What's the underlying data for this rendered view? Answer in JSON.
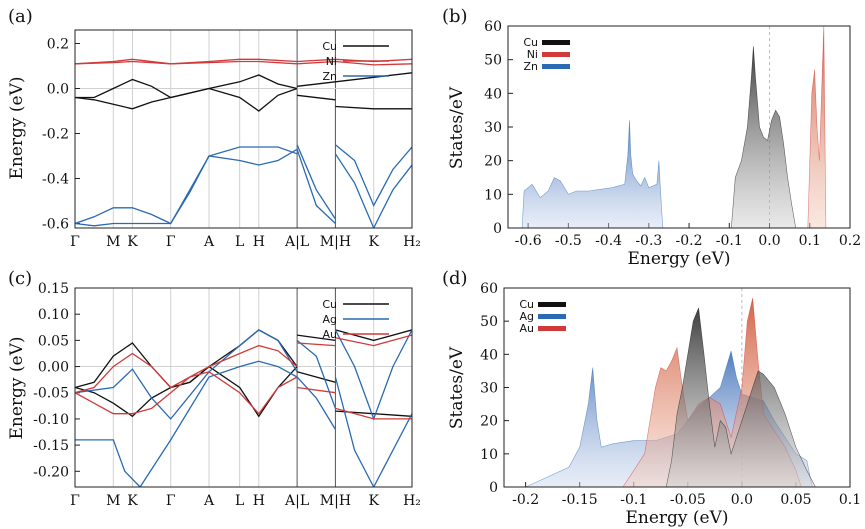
{
  "chart_data": [
    {
      "panel": "(a)",
      "type": "line",
      "xlabel": "",
      "ylabel": "Energy (eV)",
      "ylim": [
        -0.62,
        0.26
      ],
      "yticks": [
        "0.2",
        "0.0",
        "-0.2",
        "-0.4",
        "-0.6"
      ],
      "ytick_values": [
        0.2,
        0.0,
        -0.2,
        -0.4,
        -0.6
      ],
      "kpoints": [
        "Γ",
        "M",
        "K",
        "Γ",
        "A",
        "L",
        "H",
        "A|L",
        "M|H",
        "K",
        "H₂"
      ],
      "kpos": [
        0,
        1,
        1.5,
        2.5,
        3.5,
        4.3,
        4.8,
        5.8,
        6.8,
        7.8,
        8.8
      ],
      "legend": [
        {
          "name": "Cu",
          "color": "#111111"
        },
        {
          "name": "Ni",
          "color": "#d03a3a"
        },
        {
          "name": "Zn",
          "color": "#2a6ab4"
        }
      ],
      "series": [
        {
          "name": "Cu",
          "color": "#111111",
          "x": [
            0,
            0.5,
            1,
            1.5,
            2,
            2.5,
            3,
            3.5,
            4.3,
            4.8,
            5.3,
            5.8,
            5.8,
            6.8,
            6.8,
            7.8,
            8.8
          ],
          "y": [
            -0.04,
            -0.04,
            0.0,
            0.04,
            0.01,
            -0.04,
            -0.02,
            0.0,
            0.03,
            0.06,
            0.02,
            0.0,
            0.01,
            0.03,
            0.03,
            0.05,
            0.07
          ]
        },
        {
          "name": "Cu",
          "color": "#111111",
          "x": [
            0,
            0.5,
            1,
            1.5,
            2,
            2.5,
            3,
            3.5,
            4.3,
            4.8,
            5.3,
            5.8,
            5.8,
            6.8,
            6.8,
            7.8,
            8.8
          ],
          "y": [
            -0.04,
            -0.05,
            -0.07,
            -0.09,
            -0.06,
            -0.04,
            -0.02,
            0.0,
            -0.04,
            -0.1,
            -0.03,
            0.0,
            -0.03,
            -0.05,
            -0.08,
            -0.09,
            -0.09
          ]
        },
        {
          "name": "Ni",
          "color": "#d03a3a",
          "x": [
            0,
            1,
            1.5,
            2.5,
            3.5,
            4.3,
            4.8,
            5.8,
            6.8,
            7.8,
            8.8
          ],
          "y": [
            0.11,
            0.12,
            0.13,
            0.11,
            0.12,
            0.13,
            0.13,
            0.12,
            0.13,
            0.12,
            0.13
          ]
        },
        {
          "name": "Ni",
          "color": "#d03a3a",
          "x": [
            0,
            1,
            1.5,
            2.5,
            3.5,
            4.3,
            4.8,
            5.8,
            6.8,
            7.8,
            8.8
          ],
          "y": [
            0.11,
            0.115,
            0.12,
            0.11,
            0.115,
            0.12,
            0.12,
            0.11,
            0.12,
            0.105,
            0.11
          ]
        },
        {
          "name": "Zn",
          "color": "#2a6ab4",
          "x": [
            0,
            0.5,
            1,
            1.5,
            2,
            2.5,
            3,
            3.5,
            4.3,
            4.8,
            5.3,
            5.8,
            5.8,
            6.3,
            6.8,
            6.8,
            7.3,
            7.8,
            8.3,
            8.8
          ],
          "y": [
            -0.6,
            -0.57,
            -0.53,
            -0.53,
            -0.56,
            -0.6,
            -0.45,
            -0.3,
            -0.26,
            -0.26,
            -0.26,
            -0.29,
            -0.25,
            -0.45,
            -0.58,
            -0.25,
            -0.32,
            -0.52,
            -0.36,
            -0.26
          ]
        },
        {
          "name": "Zn",
          "color": "#2a6ab4",
          "x": [
            0,
            0.5,
            1,
            1.5,
            2,
            2.5,
            3,
            3.5,
            4.3,
            4.8,
            5.3,
            5.8,
            5.8,
            6.3,
            6.8,
            6.8,
            7.3,
            7.8,
            8.3,
            8.8
          ],
          "y": [
            -0.6,
            -0.61,
            -0.6,
            -0.6,
            -0.6,
            -0.6,
            -0.46,
            -0.3,
            -0.32,
            -0.34,
            -0.32,
            -0.27,
            -0.27,
            -0.52,
            -0.6,
            -0.29,
            -0.42,
            -0.62,
            -0.45,
            -0.34
          ]
        }
      ]
    },
    {
      "panel": "(b)",
      "type": "area",
      "xlabel": "Energy (eV)",
      "ylabel": "States/eV",
      "xlim": [
        -0.65,
        0.2
      ],
      "ylim": [
        0,
        60
      ],
      "xticks": [
        "-0.6",
        "-0.5",
        "-0.4",
        "-0.3",
        "-0.2",
        "-0.1",
        "0.0",
        "0.1",
        "0.2"
      ],
      "xtick_values": [
        -0.6,
        -0.5,
        -0.4,
        -0.3,
        -0.2,
        -0.1,
        0.0,
        0.1,
        0.2
      ],
      "yticks": [
        "0",
        "10",
        "20",
        "30",
        "40",
        "50",
        "60"
      ],
      "ytick_values": [
        0,
        10,
        20,
        30,
        40,
        50,
        60
      ],
      "legend": [
        {
          "name": "Cu",
          "color": "#111111"
        },
        {
          "name": "Ni",
          "color": "#d03a3a"
        },
        {
          "name": "Zn",
          "color": "#2a6ab4"
        }
      ],
      "series": [
        {
          "name": "Zn",
          "color": "#2a6ab4",
          "x": [
            -0.615,
            -0.61,
            -0.59,
            -0.57,
            -0.55,
            -0.535,
            -0.52,
            -0.5,
            -0.48,
            -0.45,
            -0.42,
            -0.39,
            -0.36,
            -0.352,
            -0.348,
            -0.345,
            -0.34,
            -0.33,
            -0.32,
            -0.31,
            -0.3,
            -0.28,
            -0.275,
            -0.272,
            -0.268,
            -0.265
          ],
          "y": [
            0,
            11,
            13,
            9,
            11,
            15,
            14,
            10,
            11,
            11,
            11.5,
            12,
            13,
            22,
            32,
            22,
            16,
            14,
            12.5,
            15,
            12,
            13,
            20,
            13,
            5,
            0
          ]
        },
        {
          "name": "Cu",
          "color": "#111111",
          "x": [
            -0.095,
            -0.085,
            -0.07,
            -0.055,
            -0.045,
            -0.04,
            -0.035,
            -0.025,
            -0.015,
            -0.005,
            0.005,
            0.015,
            0.025,
            0.035,
            0.045,
            0.055,
            0.065
          ],
          "y": [
            0,
            15,
            20,
            30,
            45,
            54,
            45,
            30,
            27,
            26,
            32,
            35,
            33,
            25,
            15,
            7,
            0
          ]
        },
        {
          "name": "Ni",
          "color": "#d03a3a",
          "x": [
            0.095,
            0.1,
            0.105,
            0.112,
            0.118,
            0.124,
            0.13,
            0.135,
            0.14
          ],
          "y": [
            0,
            20,
            40,
            47,
            30,
            20,
            42,
            60,
            0
          ]
        }
      ]
    },
    {
      "panel": "(c)",
      "type": "line",
      "xlabel": "",
      "ylabel": "Energy (eV)",
      "ylim": [
        -0.23,
        0.15
      ],
      "yticks": [
        "0.15",
        "0.10",
        "0.05",
        "0.00",
        "-0.05",
        "-0.10",
        "-0.15",
        "-0.20"
      ],
      "ytick_values": [
        0.15,
        0.1,
        0.05,
        0.0,
        -0.05,
        -0.1,
        -0.15,
        -0.2
      ],
      "kpoints": [
        "Γ",
        "M",
        "K",
        "Γ",
        "A",
        "L",
        "H",
        "A|L",
        "M|H",
        "K",
        "H₂"
      ],
      "kpos": [
        0,
        1,
        1.5,
        2.5,
        3.5,
        4.3,
        4.8,
        5.8,
        6.8,
        7.8,
        8.8
      ],
      "legend": [
        {
          "name": "Cu",
          "color": "#111111"
        },
        {
          "name": "Ag",
          "color": "#2a6ab4"
        },
        {
          "name": "Au",
          "color": "#d03a3a"
        }
      ],
      "series": [
        {
          "name": "Cu",
          "color": "#111111",
          "x": [
            0,
            0.5,
            1,
            1.5,
            2,
            2.5,
            3,
            3.5,
            4.3,
            4.8,
            5.3,
            5.8,
            5.8,
            6.8,
            6.8,
            7.8,
            8.8
          ],
          "y": [
            -0.04,
            -0.03,
            0.02,
            0.045,
            0.0,
            -0.04,
            -0.03,
            0.0,
            0.04,
            0.07,
            0.05,
            0.0,
            0.06,
            0.05,
            0.07,
            0.05,
            0.07
          ]
        },
        {
          "name": "Cu",
          "color": "#111111",
          "x": [
            0,
            0.5,
            1,
            1.5,
            2,
            2.5,
            3,
            3.5,
            4.3,
            4.8,
            5.3,
            5.8,
            5.8,
            6.8,
            6.8,
            7.8,
            8.8
          ],
          "y": [
            -0.04,
            -0.05,
            -0.07,
            -0.095,
            -0.06,
            -0.04,
            -0.03,
            0.0,
            -0.04,
            -0.095,
            -0.04,
            0.0,
            -0.01,
            -0.03,
            -0.085,
            -0.09,
            -0.095
          ]
        },
        {
          "name": "Ag",
          "color": "#2a6ab4",
          "x": [
            0,
            1,
            1.5,
            2,
            2.5,
            3.5,
            4.3,
            4.8,
            5.3,
            5.8,
            5.8,
            6.3,
            6.8,
            6.8,
            7.3,
            7.8,
            8.3,
            8.8
          ],
          "y": [
            -0.05,
            -0.04,
            -0.005,
            -0.06,
            -0.1,
            -0.01,
            0.04,
            0.07,
            0.05,
            -0.01,
            0.05,
            0.02,
            -0.08,
            0.07,
            0.0,
            -0.1,
            0.0,
            0.07
          ]
        },
        {
          "name": "Ag",
          "color": "#2a6ab4",
          "x": [
            0,
            1,
            1.3,
            1.7,
            2.5,
            3.5,
            4.3,
            4.8,
            5.3,
            5.8,
            5.8,
            6.3,
            6.8,
            6.8,
            7.3,
            7.8,
            8.3,
            8.8
          ],
          "y": [
            -0.14,
            -0.14,
            -0.2,
            -0.23,
            -0.14,
            -0.02,
            0.0,
            0.01,
            0.0,
            -0.02,
            -0.02,
            -0.06,
            -0.12,
            -0.02,
            -0.16,
            -0.23,
            -0.16,
            -0.09
          ]
        },
        {
          "name": "Au",
          "color": "#d03a3a",
          "x": [
            0,
            0.5,
            1,
            1.5,
            2,
            2.5,
            3,
            3.5,
            4.3,
            4.8,
            5.3,
            5.8,
            5.8,
            6.8,
            6.8,
            7.8,
            8.8
          ],
          "y": [
            -0.05,
            -0.04,
            0.0,
            0.025,
            0.0,
            -0.04,
            -0.02,
            0.0,
            0.025,
            0.04,
            0.03,
            0.0,
            0.045,
            0.04,
            0.055,
            0.04,
            0.06
          ]
        },
        {
          "name": "Au",
          "color": "#d03a3a",
          "x": [
            0,
            0.5,
            1,
            1.5,
            2,
            2.5,
            3,
            3.5,
            4.3,
            4.8,
            5.3,
            5.8,
            5.8,
            6.8,
            6.8,
            7.8,
            8.8
          ],
          "y": [
            -0.05,
            -0.07,
            -0.09,
            -0.09,
            -0.08,
            -0.05,
            -0.02,
            -0.01,
            -0.05,
            -0.09,
            -0.04,
            -0.02,
            -0.04,
            -0.05,
            -0.08,
            -0.1,
            -0.1
          ]
        }
      ]
    },
    {
      "panel": "(d)",
      "type": "area",
      "xlabel": "Energy (eV)",
      "ylabel": "States/eV",
      "xlim": [
        -0.22,
        0.1
      ],
      "ylim": [
        0,
        60
      ],
      "xticks": [
        "-0.2",
        "-0.15",
        "-0.1",
        "-0.05",
        "0.0",
        "0.05",
        "0.1"
      ],
      "xtick_values": [
        -0.2,
        -0.15,
        -0.1,
        -0.05,
        0.0,
        0.05,
        0.1
      ],
      "yticks": [
        "0",
        "10",
        "20",
        "30",
        "40",
        "50",
        "60"
      ],
      "ytick_values": [
        0,
        10,
        20,
        30,
        40,
        50,
        60
      ],
      "legend": [
        {
          "name": "Cu",
          "color": "#111111"
        },
        {
          "name": "Ag",
          "color": "#2a6ab4"
        },
        {
          "name": "Au",
          "color": "#d03a3a"
        }
      ],
      "series": [
        {
          "name": "Ag",
          "color": "#2a6ab4",
          "x": [
            -0.2,
            -0.18,
            -0.16,
            -0.15,
            -0.142,
            -0.138,
            -0.134,
            -0.13,
            -0.12,
            -0.1,
            -0.08,
            -0.06,
            -0.04,
            -0.02,
            -0.01,
            -0.005,
            0.0,
            0.01,
            0.02,
            0.03,
            0.04,
            0.05,
            0.06,
            0.065
          ],
          "y": [
            0,
            3,
            6,
            12,
            25,
            36,
            20,
            12,
            13,
            14,
            14,
            16,
            24,
            30,
            41,
            33,
            28,
            27,
            26,
            20,
            15,
            10,
            8,
            0
          ]
        },
        {
          "name": "Au",
          "color": "#d03a3a",
          "x": [
            -0.11,
            -0.1,
            -0.09,
            -0.08,
            -0.075,
            -0.07,
            -0.065,
            -0.06,
            -0.055,
            -0.05,
            -0.04,
            -0.03,
            -0.02,
            -0.01,
            0.0,
            0.005,
            0.01,
            0.015,
            0.02,
            0.03,
            0.04,
            0.05,
            0.055
          ],
          "y": [
            0,
            5,
            10,
            30,
            36,
            35,
            38,
            42,
            30,
            20,
            25,
            27,
            25,
            15,
            30,
            50,
            57,
            38,
            22,
            17,
            12,
            5,
            0
          ]
        },
        {
          "name": "Cu",
          "color": "#111111",
          "x": [
            -0.07,
            -0.065,
            -0.06,
            -0.055,
            -0.05,
            -0.045,
            -0.04,
            -0.035,
            -0.03,
            -0.025,
            -0.02,
            -0.015,
            -0.01,
            0.0,
            0.01,
            0.015,
            0.02,
            0.03,
            0.04,
            0.05,
            0.06,
            0.068
          ],
          "y": [
            0,
            8,
            22,
            30,
            40,
            50,
            54,
            40,
            25,
            12,
            20,
            18,
            10,
            20,
            30,
            35,
            34,
            30,
            22,
            12,
            5,
            0
          ]
        }
      ]
    }
  ]
}
